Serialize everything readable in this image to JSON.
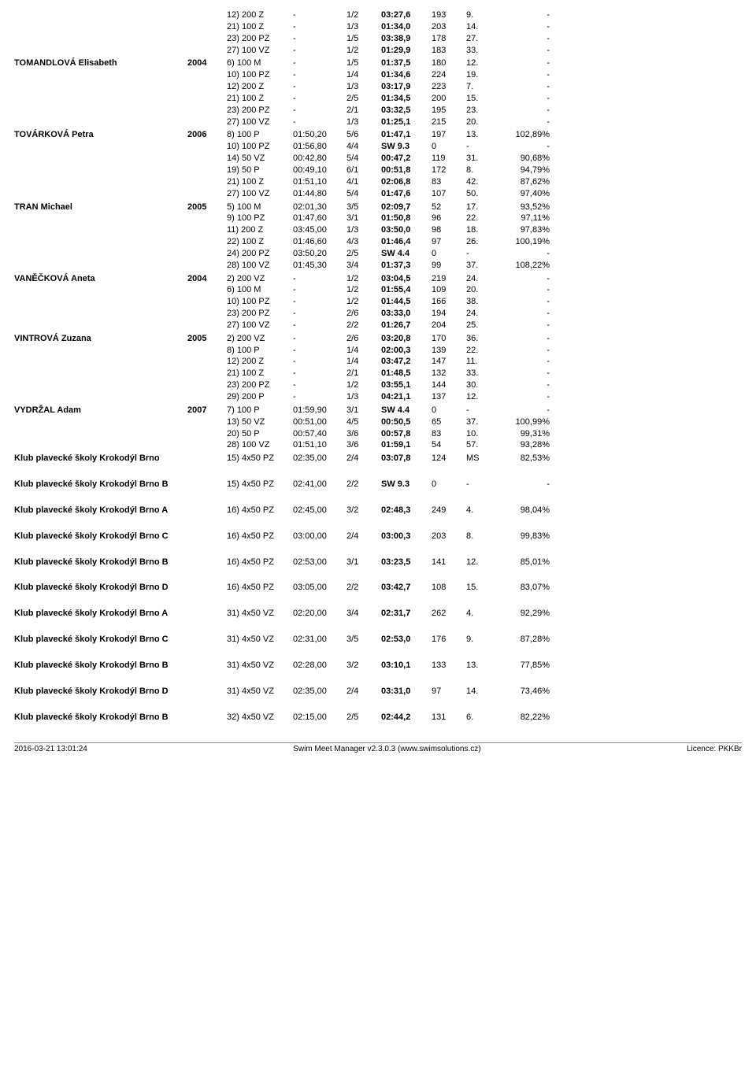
{
  "swimmers": [
    {
      "name": "",
      "year": "",
      "rows": [
        {
          "event": "12) 200 Z",
          "seed": "-",
          "place": "1/2",
          "time": "03:27,6",
          "pts": "193",
          "rank": "9.",
          "pct": "-"
        },
        {
          "event": "21) 100 Z",
          "seed": "-",
          "place": "1/3",
          "time": "01:34,0",
          "pts": "203",
          "rank": "14.",
          "pct": "-"
        },
        {
          "event": "23) 200 PZ",
          "seed": "-",
          "place": "1/5",
          "time": "03:38,9",
          "pts": "178",
          "rank": "27.",
          "pct": "-"
        },
        {
          "event": "27) 100 VZ",
          "seed": "-",
          "place": "1/2",
          "time": "01:29,9",
          "pts": "183",
          "rank": "33.",
          "pct": "-"
        }
      ]
    },
    {
      "name": "TOMANDLOVÁ Elisabeth",
      "year": "2004",
      "rows": [
        {
          "event": "6) 100 M",
          "seed": "-",
          "place": "1/5",
          "time": "01:37,5",
          "pts": "180",
          "rank": "12.",
          "pct": "-"
        },
        {
          "event": "10) 100 PZ",
          "seed": "-",
          "place": "1/4",
          "time": "01:34,6",
          "pts": "224",
          "rank": "19.",
          "pct": "-"
        },
        {
          "event": "12) 200 Z",
          "seed": "-",
          "place": "1/3",
          "time": "03:17,9",
          "pts": "223",
          "rank": "7.",
          "pct": "-"
        },
        {
          "event": "21) 100 Z",
          "seed": "-",
          "place": "2/5",
          "time": "01:34,5",
          "pts": "200",
          "rank": "15.",
          "pct": "-"
        },
        {
          "event": "23) 200 PZ",
          "seed": "-",
          "place": "2/1",
          "time": "03:32,5",
          "pts": "195",
          "rank": "23.",
          "pct": "-"
        },
        {
          "event": "27) 100 VZ",
          "seed": "-",
          "place": "1/3",
          "time": "01:25,1",
          "pts": "215",
          "rank": "20.",
          "pct": "-"
        }
      ]
    },
    {
      "name": "TOVÁRKOVÁ Petra",
      "year": "2006",
      "rows": [
        {
          "event": "8) 100 P",
          "seed": "01:50,20",
          "place": "5/6",
          "time": "01:47,1",
          "pts": "197",
          "rank": "13.",
          "pct": "102,89%"
        },
        {
          "event": "10) 100 PZ",
          "seed": "01:56,80",
          "place": "4/4",
          "time": "SW 9.3",
          "pts": "0",
          "rank": "-",
          "pct": "-"
        },
        {
          "event": "14) 50 VZ",
          "seed": "00:42,80",
          "place": "5/4",
          "time": "00:47,2",
          "pts": "119",
          "rank": "31.",
          "pct": "90,68%"
        },
        {
          "event": "19) 50 P",
          "seed": "00:49,10",
          "place": "6/1",
          "time": "00:51,8",
          "pts": "172",
          "rank": "8.",
          "pct": "94,79%"
        },
        {
          "event": "21) 100 Z",
          "seed": "01:51,10",
          "place": "4/1",
          "time": "02:06,8",
          "pts": "83",
          "rank": "42.",
          "pct": "87,62%"
        },
        {
          "event": "27) 100 VZ",
          "seed": "01:44,80",
          "place": "5/4",
          "time": "01:47,6",
          "pts": "107",
          "rank": "50.",
          "pct": "97,40%"
        }
      ]
    },
    {
      "name": "TRAN Michael",
      "year": "2005",
      "rows": [
        {
          "event": "5) 100 M",
          "seed": "02:01,30",
          "place": "3/5",
          "time": "02:09,7",
          "pts": "52",
          "rank": "17.",
          "pct": "93,52%"
        },
        {
          "event": "9) 100 PZ",
          "seed": "01:47,60",
          "place": "3/1",
          "time": "01:50,8",
          "pts": "96",
          "rank": "22.",
          "pct": "97,11%"
        },
        {
          "event": "11) 200 Z",
          "seed": "03:45,00",
          "place": "1/3",
          "time": "03:50,0",
          "pts": "98",
          "rank": "18.",
          "pct": "97,83%"
        },
        {
          "event": "22) 100 Z",
          "seed": "01:46,60",
          "place": "4/3",
          "time": "01:46,4",
          "pts": "97",
          "rank": "26.",
          "pct": "100,19%"
        },
        {
          "event": "24) 200 PZ",
          "seed": "03:50,20",
          "place": "2/5",
          "time": "SW 4.4",
          "pts": "0",
          "rank": "-",
          "pct": "-"
        },
        {
          "event": "28) 100 VZ",
          "seed": "01:45,30",
          "place": "3/4",
          "time": "01:37,3",
          "pts": "99",
          "rank": "37.",
          "pct": "108,22%"
        }
      ]
    },
    {
      "name": "VANĚČKOVÁ Aneta",
      "year": "2004",
      "rows": [
        {
          "event": "2) 200 VZ",
          "seed": "-",
          "place": "1/2",
          "time": "03:04,5",
          "pts": "219",
          "rank": "24.",
          "pct": "-"
        },
        {
          "event": "6) 100 M",
          "seed": "-",
          "place": "1/2",
          "time": "01:55,4",
          "pts": "109",
          "rank": "20.",
          "pct": "-"
        },
        {
          "event": "10) 100 PZ",
          "seed": "-",
          "place": "1/2",
          "time": "01:44,5",
          "pts": "166",
          "rank": "38.",
          "pct": "-"
        },
        {
          "event": "23) 200 PZ",
          "seed": "-",
          "place": "2/6",
          "time": "03:33,0",
          "pts": "194",
          "rank": "24.",
          "pct": "-"
        },
        {
          "event": "27) 100 VZ",
          "seed": "-",
          "place": "2/2",
          "time": "01:26,7",
          "pts": "204",
          "rank": "25.",
          "pct": "-"
        }
      ]
    },
    {
      "name": "VINTROVÁ Zuzana",
      "year": "2005",
      "rows": [
        {
          "event": "2) 200 VZ",
          "seed": "-",
          "place": "2/6",
          "time": "03:20,8",
          "pts": "170",
          "rank": "36.",
          "pct": "-"
        },
        {
          "event": "8) 100 P",
          "seed": "-",
          "place": "1/4",
          "time": "02:00,3",
          "pts": "139",
          "rank": "22.",
          "pct": "-"
        },
        {
          "event": "12) 200 Z",
          "seed": "-",
          "place": "1/4",
          "time": "03:47,2",
          "pts": "147",
          "rank": "11.",
          "pct": "-"
        },
        {
          "event": "21) 100 Z",
          "seed": "-",
          "place": "2/1",
          "time": "01:48,5",
          "pts": "132",
          "rank": "33.",
          "pct": "-"
        },
        {
          "event": "23) 200 PZ",
          "seed": "-",
          "place": "1/2",
          "time": "03:55,1",
          "pts": "144",
          "rank": "30.",
          "pct": "-"
        },
        {
          "event": "29) 200 P",
          "seed": "-",
          "place": "1/3",
          "time": "04:21,1",
          "pts": "137",
          "rank": "12.",
          "pct": "-"
        }
      ]
    },
    {
      "name": "VYDRŽAL Adam",
      "year": "2007",
      "rows": [
        {
          "event": "7) 100 P",
          "seed": "01:59,90",
          "place": "3/1",
          "time": "SW 4.4",
          "pts": "0",
          "rank": "-",
          "pct": "-"
        },
        {
          "event": "13) 50 VZ",
          "seed": "00:51,00",
          "place": "4/5",
          "time": "00:50,5",
          "pts": "65",
          "rank": "37.",
          "pct": "100,99%"
        },
        {
          "event": "20) 50 P",
          "seed": "00:57,40",
          "place": "3/6",
          "time": "00:57,8",
          "pts": "83",
          "rank": "10.",
          "pct": "99,31%"
        },
        {
          "event": "28) 100 VZ",
          "seed": "01:51,10",
          "place": "3/6",
          "time": "01:59,1",
          "pts": "54",
          "rank": "57.",
          "pct": "93,28%"
        }
      ]
    }
  ],
  "relays": [
    {
      "name": "Klub plavecké školy Krokodýl Brno",
      "event": "15) 4x50 PZ",
      "seed": "02:35,00",
      "place": "2/4",
      "time": "03:07,8",
      "pts": "124",
      "rank": "MS",
      "pct": "82,53%"
    },
    {
      "name": "Klub plavecké školy Krokodýl Brno B",
      "event": "15) 4x50 PZ",
      "seed": "02:41,00",
      "place": "2/2",
      "time": "SW 9.3",
      "pts": "0",
      "rank": "-",
      "pct": "-"
    },
    {
      "name": "Klub plavecké školy Krokodýl Brno A",
      "event": "16) 4x50 PZ",
      "seed": "02:45,00",
      "place": "3/2",
      "time": "02:48,3",
      "pts": "249",
      "rank": "4.",
      "pct": "98,04%"
    },
    {
      "name": "Klub plavecké školy Krokodýl Brno C",
      "event": "16) 4x50 PZ",
      "seed": "03:00,00",
      "place": "2/4",
      "time": "03:00,3",
      "pts": "203",
      "rank": "8.",
      "pct": "99,83%"
    },
    {
      "name": "Klub plavecké školy Krokodýl Brno B",
      "event": "16) 4x50 PZ",
      "seed": "02:53,00",
      "place": "3/1",
      "time": "03:23,5",
      "pts": "141",
      "rank": "12.",
      "pct": "85,01%"
    },
    {
      "name": "Klub plavecké školy Krokodýl Brno D",
      "event": "16) 4x50 PZ",
      "seed": "03:05,00",
      "place": "2/2",
      "time": "03:42,7",
      "pts": "108",
      "rank": "15.",
      "pct": "83,07%"
    },
    {
      "name": "Klub plavecké školy Krokodýl Brno A",
      "event": "31) 4x50 VZ",
      "seed": "02:20,00",
      "place": "3/4",
      "time": "02:31,7",
      "pts": "262",
      "rank": "4.",
      "pct": "92,29%"
    },
    {
      "name": "Klub plavecké školy Krokodýl Brno C",
      "event": "31) 4x50 VZ",
      "seed": "02:31,00",
      "place": "3/5",
      "time": "02:53,0",
      "pts": "176",
      "rank": "9.",
      "pct": "87,28%"
    },
    {
      "name": "Klub plavecké školy Krokodýl Brno B",
      "event": "31) 4x50 VZ",
      "seed": "02:28,00",
      "place": "3/2",
      "time": "03:10,1",
      "pts": "133",
      "rank": "13.",
      "pct": "77,85%"
    },
    {
      "name": "Klub plavecké školy Krokodýl Brno D",
      "event": "31) 4x50 VZ",
      "seed": "02:35,00",
      "place": "2/4",
      "time": "03:31,0",
      "pts": "97",
      "rank": "14.",
      "pct": "73,46%"
    },
    {
      "name": "Klub plavecké školy Krokodýl Brno B",
      "event": "32) 4x50 VZ",
      "seed": "02:15,00",
      "place": "2/5",
      "time": "02:44,2",
      "pts": "131",
      "rank": "6.",
      "pct": "82,22%"
    }
  ],
  "footer": {
    "left": "2016-03-21 13:01:24",
    "center": "Swim Meet Manager v2.3.0.3 (www.swimsolutions.cz)",
    "right": "Licence: PKKBr"
  }
}
